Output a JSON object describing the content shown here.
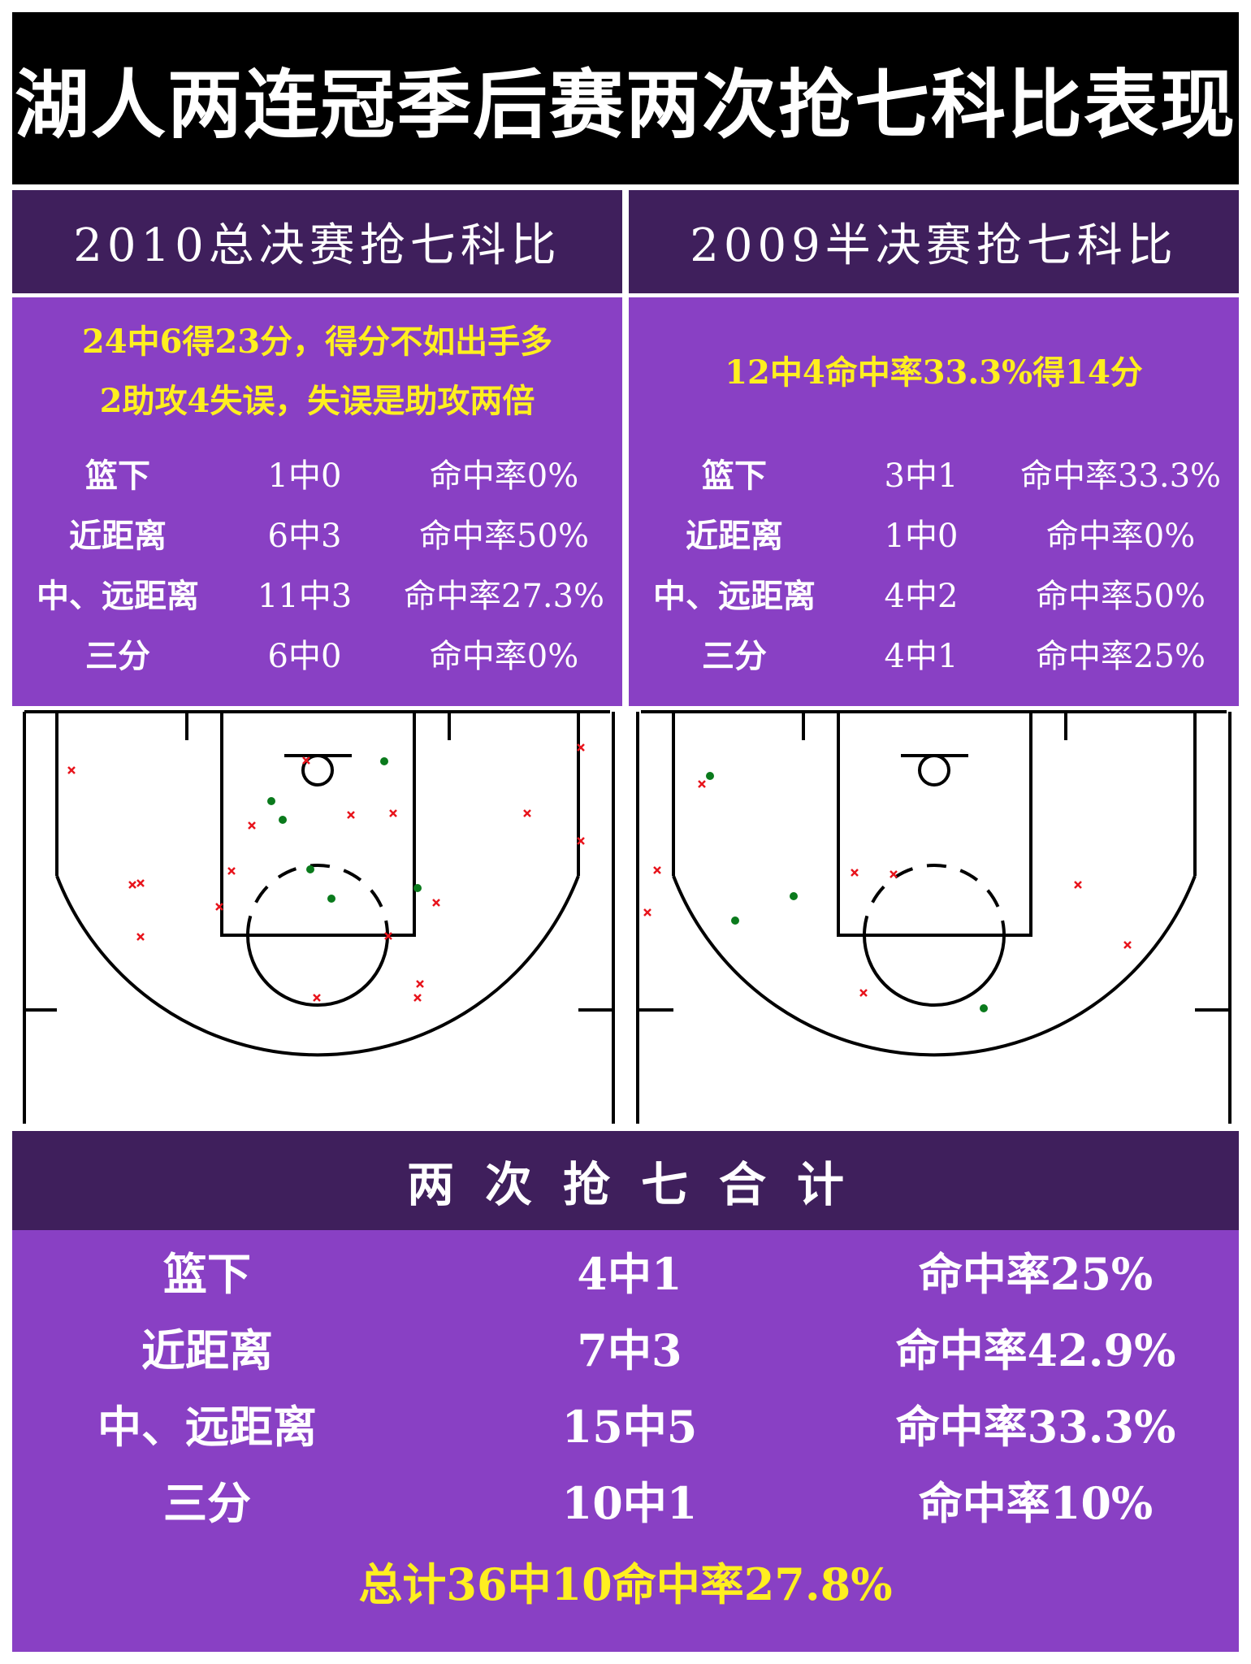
{
  "title": "湖人两连冠季后赛两次抢七科比表现",
  "colors": {
    "title_bg": "#000000",
    "header_bg": "#3f1f5c",
    "panel_bg": "#8940c4",
    "highlight_text": "#ffef1f",
    "made_shot": "#0a7a1c",
    "missed_shot": "#e8141c"
  },
  "left_panel": {
    "header": "2010总决赛抢七科比",
    "summary": [
      "24中6得23分，得分不如出手多",
      "2助攻4失误，失误是助攻两倍"
    ],
    "stats": [
      {
        "zone": "篮下",
        "attempts": "1中0",
        "pct": "命中率0%"
      },
      {
        "zone": "近距离",
        "attempts": "6中3",
        "pct": "命中率50%"
      },
      {
        "zone": "中、远距离",
        "attempts": "11中3",
        "pct": "命中率27.3%"
      },
      {
        "zone": "三分",
        "attempts": "6中0",
        "pct": "命中率0%"
      }
    ]
  },
  "right_panel": {
    "header": "2009半决赛抢七科比",
    "summary": [
      "12中4命中率33.3%得14分"
    ],
    "stats": [
      {
        "zone": "篮下",
        "attempts": "3中1",
        "pct": "命中率33.3%"
      },
      {
        "zone": "近距离",
        "attempts": "1中0",
        "pct": "命中率0%"
      },
      {
        "zone": "中、远距离",
        "attempts": "4中2",
        "pct": "命中率50%"
      },
      {
        "zone": "三分",
        "attempts": "4中1",
        "pct": "命中率25%"
      }
    ]
  },
  "total": {
    "header": "两次抢七合计",
    "stats": [
      {
        "zone": "篮下",
        "attempts": "4中1",
        "pct": "命中率25%"
      },
      {
        "zone": "近距离",
        "attempts": "7中3",
        "pct": "命中率42.9%"
      },
      {
        "zone": "中、远距离",
        "attempts": "15中5",
        "pct": "命中率33.3%"
      },
      {
        "zone": "三分",
        "attempts": "10中1",
        "pct": "命中率10%"
      }
    ],
    "grand_total": "总计36中10命中率27.8%"
  }
}
